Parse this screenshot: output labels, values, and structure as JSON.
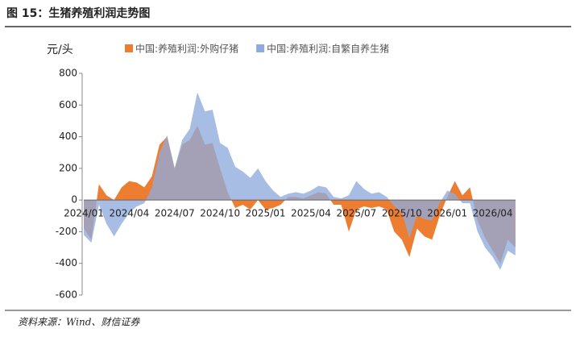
{
  "chart_data": {
    "type": "area",
    "title": "图 15：生猪养殖利润走势图",
    "y_label": "元/头",
    "source": "资料来源：Wind、财信证券",
    "categories": [
      "2024/01",
      null,
      null,
      null,
      null,
      null,
      "2024/04",
      null,
      null,
      null,
      null,
      null,
      "2024/07",
      null,
      null,
      null,
      null,
      null,
      "2024/10",
      null,
      null,
      null,
      null,
      null,
      "2025/01",
      null,
      null,
      null,
      null,
      null,
      "2025/04",
      null,
      null,
      null,
      null,
      null,
      "2025/07",
      null,
      null,
      null,
      null,
      null,
      "2025/10",
      null,
      null,
      null,
      null,
      null,
      "2026/01",
      null,
      null,
      null,
      null,
      null,
      "2026/04",
      null,
      null,
      null
    ],
    "series": [
      {
        "name": "中国:养殖利润:外购仔猪",
        "color": "#ed7d31",
        "values": [
          -180,
          -250,
          100,
          30,
          0,
          80,
          120,
          110,
          80,
          150,
          350,
          400,
          200,
          350,
          380,
          470,
          350,
          360,
          200,
          50,
          -50,
          -30,
          -60,
          0,
          -60,
          -50,
          -30,
          20,
          20,
          10,
          30,
          50,
          40,
          -30,
          -30,
          -200,
          -60,
          -40,
          -50,
          -40,
          -60,
          -200,
          -250,
          -360,
          -180,
          -230,
          -250,
          -100,
          20,
          120,
          30,
          80,
          -130,
          -240,
          -320,
          -400,
          -250,
          -300
        ]
      },
      {
        "name": "中国:养殖利润:自繁自养生猪",
        "color": "#8faadc",
        "values": [
          -220,
          -270,
          -30,
          -150,
          -230,
          -150,
          -80,
          -40,
          -20,
          80,
          300,
          410,
          200,
          380,
          450,
          680,
          560,
          570,
          360,
          330,
          210,
          180,
          140,
          200,
          120,
          60,
          20,
          40,
          50,
          40,
          60,
          90,
          80,
          20,
          10,
          30,
          120,
          70,
          40,
          50,
          20,
          -40,
          -80,
          -240,
          -100,
          -120,
          -130,
          -20,
          60,
          40,
          -20,
          -20,
          -200,
          -300,
          -360,
          -440,
          -320,
          -350
        ]
      }
    ],
    "ylim": [
      -600,
      800
    ],
    "yticks": [
      -600,
      -400,
      -200,
      0,
      200,
      400,
      600,
      800
    ],
    "legend": "top"
  }
}
